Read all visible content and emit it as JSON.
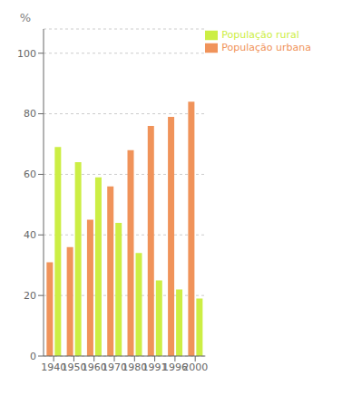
{
  "chart_data": {
    "type": "bar",
    "categories": [
      "1940",
      "1950",
      "1960",
      "1970",
      "1980",
      "1991",
      "1996",
      "2000"
    ],
    "series": [
      {
        "name": "População urbana",
        "color": "#F0935A",
        "values": [
          31,
          36,
          45,
          56,
          68,
          76,
          79,
          84
        ]
      },
      {
        "name": "População rural",
        "color": "#CCEE44",
        "values": [
          69,
          64,
          59,
          44,
          34,
          25,
          22,
          19
        ]
      }
    ],
    "ylabel": "%",
    "ylim": [
      0,
      108
    ],
    "yticks": [
      0,
      20,
      40,
      60,
      80,
      100
    ],
    "grid": true,
    "legend": "upper right"
  }
}
